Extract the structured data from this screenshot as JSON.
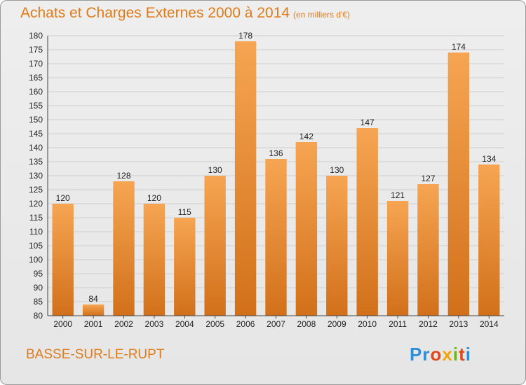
{
  "header": {
    "title": "Achats et Charges Externes 2000 à 2014",
    "unit": "(en milliers d'€)"
  },
  "footer": {
    "commune": "BASSE-SUR-LE-RUPT",
    "logo": [
      "Pr",
      "o",
      "x",
      "i",
      "t",
      "i"
    ]
  },
  "colors": {
    "bar_top": "#f6a552",
    "bar_bottom": "#d2701a",
    "text_accent": "#e07b17"
  },
  "chart_data": {
    "type": "bar",
    "title": "Achats et Charges Externes 2000 à 2014",
    "subtitle": "(en milliers d'€)",
    "categories": [
      "2000",
      "2001",
      "2002",
      "2003",
      "2004",
      "2005",
      "2006",
      "2007",
      "2008",
      "2009",
      "2010",
      "2011",
      "2012",
      "2013",
      "2014"
    ],
    "values": [
      120,
      84,
      128,
      120,
      115,
      130,
      178,
      136,
      142,
      130,
      147,
      121,
      127,
      174,
      134
    ],
    "ylim": [
      80,
      180
    ],
    "yticks": [
      80,
      85,
      90,
      95,
      100,
      105,
      110,
      115,
      120,
      125,
      130,
      135,
      140,
      145,
      150,
      155,
      160,
      165,
      170,
      175,
      180
    ],
    "grid": true,
    "legend": "none"
  }
}
